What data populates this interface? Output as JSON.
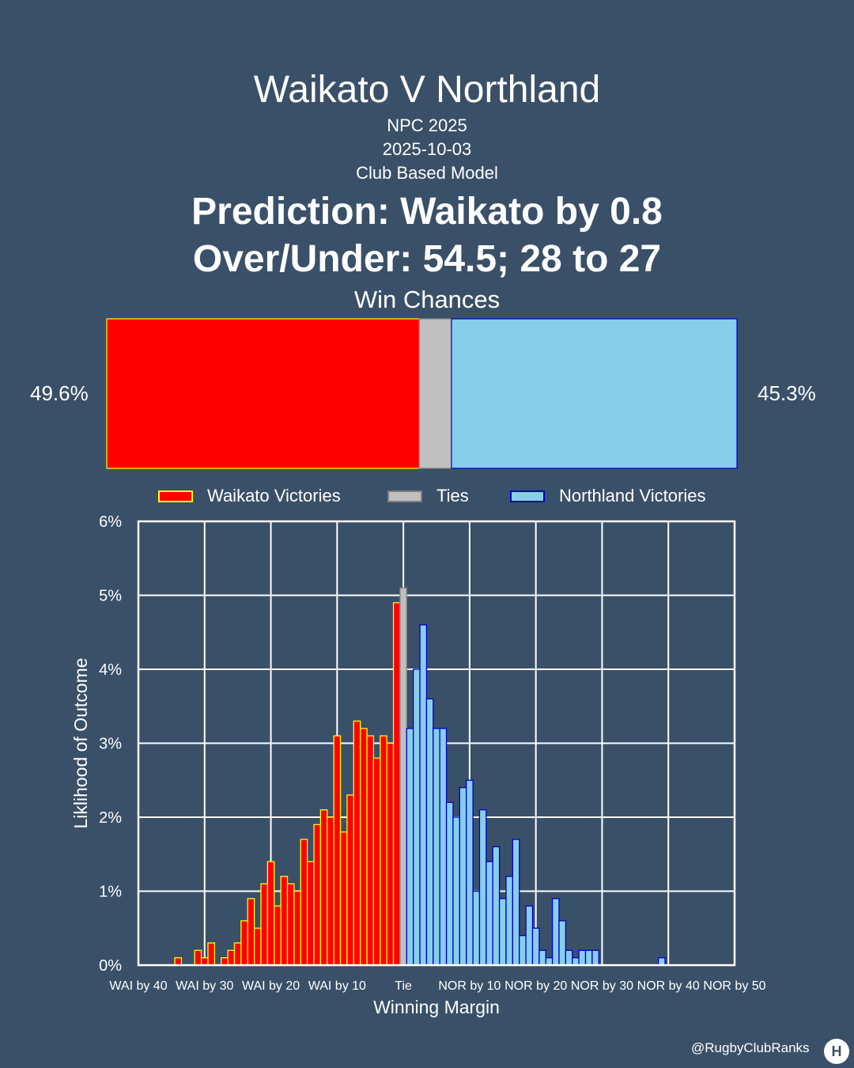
{
  "header": {
    "title": "Waikato V Northland",
    "competition": "NPC 2025",
    "date": "2025-10-03",
    "model": "Club Based Model",
    "prediction": "Prediction: Waikato by 0.8",
    "over_under": "Over/Under: 54.5; 28 to 27",
    "win_chances_label": "Win Chances"
  },
  "win_chances": {
    "home_pct_label": "49.6%",
    "away_pct_label": "45.3%",
    "home": 49.6,
    "tie": 5.1,
    "away": 45.3
  },
  "legend": {
    "home": "Waikato Victories",
    "tie": "Ties",
    "away": "Northland Victories"
  },
  "colors": {
    "background": "#3a5068",
    "home_fill": "#ff0000",
    "home_edge": "#ffff00",
    "tie_fill": "#c0c0c0",
    "tie_edge": "#808080",
    "away_fill": "#87ceeb",
    "away_edge": "#0000cd",
    "grid": "#ffffff"
  },
  "chart_data": {
    "type": "bar",
    "xlabel": "Winning Margin",
    "ylabel": "Liklihood of Outcome",
    "xlim": [
      -40,
      50
    ],
    "ylim": [
      0,
      6
    ],
    "grid": true,
    "x_ticks": [
      -40,
      -30,
      -20,
      -10,
      0,
      10,
      20,
      30,
      40,
      50
    ],
    "x_tick_labels": [
      "WAI by 40",
      "WAI by 30",
      "WAI by 20",
      "WAI by 10",
      "Tie",
      "NOR by 10",
      "NOR by 20",
      "NOR by 30",
      "NOR by 40",
      "NOR by 50"
    ],
    "y_ticks": [
      0,
      1,
      2,
      3,
      4,
      5,
      6
    ],
    "y_tick_labels": [
      "0%",
      "1%",
      "2%",
      "3%",
      "4%",
      "5%",
      "6%"
    ],
    "series": [
      {
        "name": "Waikato Victories",
        "x": [
          -34,
          -31,
          -30,
          -29,
          -27,
          -26,
          -25,
          -24,
          -23,
          -22,
          -21,
          -20,
          -19,
          -18,
          -17,
          -16,
          -15,
          -14,
          -13,
          -12,
          -11,
          -10,
          -9,
          -8,
          -7,
          -6,
          -5,
          -4,
          -3,
          -2,
          -1
        ],
        "values": [
          0.1,
          0.2,
          0.1,
          0.3,
          0.1,
          0.2,
          0.3,
          0.6,
          0.9,
          0.5,
          1.1,
          1.4,
          0.8,
          1.2,
          1.1,
          1.0,
          1.7,
          1.4,
          1.9,
          2.1,
          2.0,
          3.1,
          1.8,
          2.3,
          3.3,
          3.2,
          3.1,
          2.8,
          3.1,
          3.0,
          4.9
        ]
      },
      {
        "name": "Ties",
        "x": [
          0
        ],
        "values": [
          5.1
        ]
      },
      {
        "name": "Northland Victories",
        "x": [
          1,
          2,
          3,
          4,
          5,
          6,
          7,
          8,
          9,
          10,
          11,
          12,
          13,
          14,
          15,
          16,
          17,
          18,
          19,
          20,
          21,
          22,
          23,
          24,
          25,
          26,
          27,
          28,
          29,
          30,
          31,
          39
        ],
        "values": [
          3.2,
          4.0,
          4.6,
          3.6,
          3.2,
          3.2,
          2.2,
          2.0,
          2.4,
          2.5,
          1.0,
          2.1,
          1.4,
          1.6,
          0.9,
          1.2,
          1.7,
          0.4,
          0.8,
          0.5,
          0.2,
          0.1,
          0.9,
          0.6,
          0.2,
          0.1,
          0.2,
          0.2,
          0.2,
          0.0,
          0.0,
          0.1
        ]
      }
    ]
  },
  "footer": {
    "handle": "@RugbyClubRanks",
    "logo_glyph": "H"
  }
}
